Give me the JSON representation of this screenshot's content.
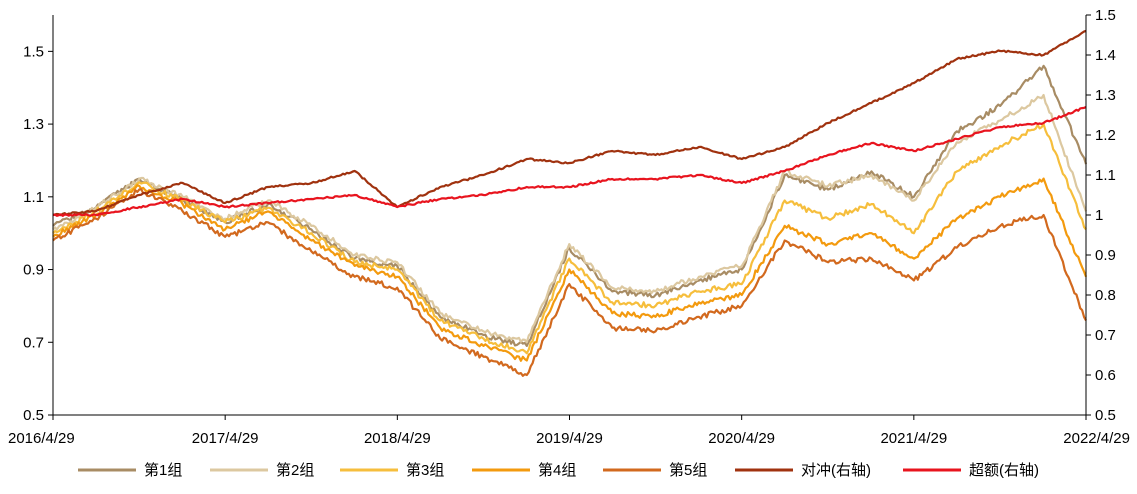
{
  "chart_data": {
    "type": "line",
    "title": "",
    "xlabel": "",
    "ylabel": "",
    "x_ticks": [
      "2016/4/29",
      "2017/4/29",
      "2018/4/29",
      "2019/4/29",
      "2020/4/29",
      "2021/4/29",
      "2022/4/29"
    ],
    "x_range": [
      "2016/4/29",
      "2022/4/29"
    ],
    "ylim_left": [
      0.5,
      1.6
    ],
    "ylim_right": [
      0.5,
      1.5
    ],
    "yticks_left": [
      0.5,
      0.7,
      0.9,
      1.1,
      1.3,
      1.5
    ],
    "yticks_right": [
      0.5,
      0.6,
      0.7,
      0.8,
      0.9,
      1,
      1.1,
      1.2,
      1.3,
      1.4,
      1.5
    ],
    "grid": false,
    "legend_position": "bottom",
    "series": [
      {
        "name": "第1组",
        "axis": "left",
        "color": "#A88C64",
        "x": [
          "2016/4/29",
          "2016/7/29",
          "2016/10/29",
          "2017/1/29",
          "2017/4/29",
          "2017/7/29",
          "2017/10/29",
          "2018/1/29",
          "2018/4/29",
          "2018/7/29",
          "2018/10/29",
          "2019/1/29",
          "2019/4/29",
          "2019/7/29",
          "2019/10/29",
          "2020/1/29",
          "2020/4/29",
          "2020/7/29",
          "2020/10/29",
          "2021/1/29",
          "2021/4/29",
          "2021/7/29",
          "2021/10/29",
          "2022/1/29",
          "2022/4/29"
        ],
        "values": [
          1.02,
          1.07,
          1.15,
          1.09,
          1.03,
          1.08,
          1.01,
          0.93,
          0.91,
          0.77,
          0.72,
          0.69,
          0.96,
          0.84,
          0.83,
          0.87,
          0.9,
          1.16,
          1.12,
          1.17,
          1.1,
          1.28,
          1.35,
          1.46,
          1.19
        ]
      },
      {
        "name": "第2组",
        "axis": "left",
        "color": "#DCC8A0",
        "x": [
          "2016/4/29",
          "2016/7/29",
          "2016/10/29",
          "2017/1/29",
          "2017/4/29",
          "2017/7/29",
          "2017/10/29",
          "2018/1/29",
          "2018/4/29",
          "2018/7/29",
          "2018/10/29",
          "2019/1/29",
          "2019/4/29",
          "2019/7/29",
          "2019/10/29",
          "2020/1/29",
          "2020/4/29",
          "2020/7/29",
          "2020/10/29",
          "2021/1/29",
          "2021/4/29",
          "2021/7/29",
          "2021/10/29",
          "2022/1/29",
          "2022/4/29"
        ],
        "values": [
          1.01,
          1.07,
          1.15,
          1.1,
          1.04,
          1.09,
          1.02,
          0.94,
          0.92,
          0.78,
          0.73,
          0.7,
          0.97,
          0.85,
          0.84,
          0.88,
          0.91,
          1.17,
          1.13,
          1.16,
          1.09,
          1.25,
          1.31,
          1.38,
          1.06
        ]
      },
      {
        "name": "第3组",
        "axis": "left",
        "color": "#F6BE3C",
        "x": [
          "2016/4/29",
          "2016/7/29",
          "2016/10/29",
          "2017/1/29",
          "2017/4/29",
          "2017/7/29",
          "2017/10/29",
          "2018/1/29",
          "2018/4/29",
          "2018/7/29",
          "2018/10/29",
          "2019/1/29",
          "2019/4/29",
          "2019/7/29",
          "2019/10/29",
          "2020/1/29",
          "2020/4/29",
          "2020/7/29",
          "2020/10/29",
          "2021/1/29",
          "2021/4/29",
          "2021/7/29",
          "2021/10/29",
          "2022/1/29",
          "2022/4/29"
        ],
        "values": [
          1.0,
          1.06,
          1.14,
          1.09,
          1.03,
          1.07,
          1.0,
          0.92,
          0.9,
          0.76,
          0.71,
          0.67,
          0.93,
          0.81,
          0.8,
          0.84,
          0.86,
          1.09,
          1.04,
          1.08,
          1.0,
          1.17,
          1.24,
          1.3,
          1.01
        ]
      },
      {
        "name": "第4组",
        "axis": "left",
        "color": "#F39A0E",
        "x": [
          "2016/4/29",
          "2016/7/29",
          "2016/10/29",
          "2017/1/29",
          "2017/4/29",
          "2017/7/29",
          "2017/10/29",
          "2018/1/29",
          "2018/4/29",
          "2018/7/29",
          "2018/10/29",
          "2019/1/29",
          "2019/4/29",
          "2019/7/29",
          "2019/10/29",
          "2020/1/29",
          "2020/4/29",
          "2020/7/29",
          "2020/10/29",
          "2021/1/29",
          "2021/4/29",
          "2021/7/29",
          "2021/10/29",
          "2022/1/29",
          "2022/4/29"
        ],
        "values": [
          0.99,
          1.05,
          1.13,
          1.08,
          1.01,
          1.06,
          0.98,
          0.91,
          0.88,
          0.74,
          0.69,
          0.65,
          0.9,
          0.78,
          0.77,
          0.81,
          0.83,
          1.02,
          0.97,
          1.0,
          0.93,
          1.04,
          1.1,
          1.15,
          0.88
        ]
      },
      {
        "name": "第5组",
        "axis": "left",
        "color": "#D2691E",
        "x": [
          "2016/4/29",
          "2016/7/29",
          "2016/10/29",
          "2017/1/29",
          "2017/4/29",
          "2017/7/29",
          "2017/10/29",
          "2018/1/29",
          "2018/4/29",
          "2018/7/29",
          "2018/10/29",
          "2019/1/29",
          "2019/4/29",
          "2019/7/29",
          "2019/10/29",
          "2020/1/29",
          "2020/4/29",
          "2020/7/29",
          "2020/10/29",
          "2021/1/29",
          "2021/4/29",
          "2021/7/29",
          "2021/10/29",
          "2022/1/29",
          "2022/4/29"
        ],
        "values": [
          0.98,
          1.04,
          1.12,
          1.06,
          0.99,
          1.03,
          0.95,
          0.88,
          0.85,
          0.71,
          0.66,
          0.61,
          0.86,
          0.74,
          0.73,
          0.77,
          0.8,
          0.98,
          0.92,
          0.93,
          0.87,
          0.96,
          1.02,
          1.05,
          0.76
        ]
      },
      {
        "name": "对冲(右轴)",
        "axis": "right",
        "color": "#A0320F",
        "x": [
          "2016/4/29",
          "2016/7/29",
          "2016/10/29",
          "2017/1/29",
          "2017/4/29",
          "2017/7/29",
          "2017/10/29",
          "2018/1/29",
          "2018/4/29",
          "2018/7/29",
          "2018/10/29",
          "2019/1/29",
          "2019/4/29",
          "2019/7/29",
          "2019/10/29",
          "2020/1/29",
          "2020/4/29",
          "2020/7/29",
          "2020/10/29",
          "2021/1/29",
          "2021/4/29",
          "2021/7/29",
          "2021/10/29",
          "2022/1/29",
          "2022/4/29"
        ],
        "values": [
          1.0,
          1.01,
          1.05,
          1.08,
          1.03,
          1.07,
          1.08,
          1.11,
          1.02,
          1.07,
          1.1,
          1.14,
          1.13,
          1.16,
          1.15,
          1.17,
          1.14,
          1.17,
          1.23,
          1.28,
          1.33,
          1.39,
          1.41,
          1.4,
          1.46
        ]
      },
      {
        "name": "超额(右轴)",
        "axis": "right",
        "color": "#E8141E",
        "x": [
          "2016/4/29",
          "2016/7/29",
          "2016/10/29",
          "2017/1/29",
          "2017/4/29",
          "2017/7/29",
          "2017/10/29",
          "2018/1/29",
          "2018/4/29",
          "2018/7/29",
          "2018/10/29",
          "2019/1/29",
          "2019/4/29",
          "2019/7/29",
          "2019/10/29",
          "2020/1/29",
          "2020/4/29",
          "2020/7/29",
          "2020/10/29",
          "2021/1/29",
          "2021/4/29",
          "2021/7/29",
          "2021/10/29",
          "2022/1/29",
          "2022/4/29"
        ],
        "values": [
          1.0,
          1.0,
          1.02,
          1.04,
          1.02,
          1.03,
          1.04,
          1.05,
          1.02,
          1.04,
          1.05,
          1.07,
          1.07,
          1.09,
          1.09,
          1.1,
          1.08,
          1.11,
          1.15,
          1.18,
          1.16,
          1.19,
          1.22,
          1.23,
          1.27
        ]
      }
    ]
  }
}
